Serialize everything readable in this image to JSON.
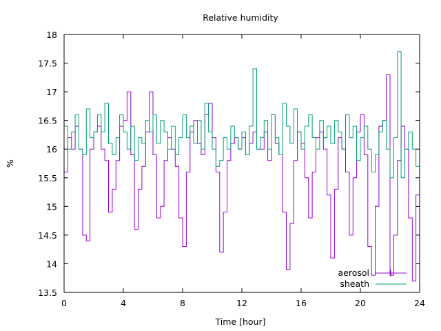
{
  "chart_data": {
    "type": "line",
    "title": "Relative humidity",
    "xlabel": "Time [hour]",
    "ylabel": "%",
    "xlim": [
      0,
      24
    ],
    "ylim": [
      13.5,
      18
    ],
    "xticks": [
      "0",
      "4",
      "8",
      "12",
      "16",
      "20",
      "24"
    ],
    "yticks": [
      "13.5",
      "14",
      "14.5",
      "15",
      "15.5",
      "16",
      "16.5",
      "17",
      "17.5",
      "18"
    ],
    "grid": false,
    "legend_position": "bottom-right",
    "x_start": 0,
    "x_step": 0.25,
    "series": [
      {
        "name": "aerosol",
        "color": "#9400d3",
        "values": [
          15.6,
          16.2,
          16.0,
          16.4,
          16.0,
          14.5,
          14.4,
          16.0,
          16.3,
          16.4,
          16.0,
          15.8,
          14.9,
          15.3,
          15.8,
          16.4,
          16.5,
          17.0,
          15.9,
          14.6,
          15.3,
          15.7,
          16.3,
          17.0,
          15.9,
          14.8,
          15.0,
          15.8,
          16.2,
          16.0,
          15.7,
          14.8,
          14.3,
          15.6,
          16.3,
          16.5,
          16.1,
          15.9,
          16.6,
          16.8,
          16.2,
          15.6,
          14.2,
          14.9,
          15.8,
          16.1,
          16.2,
          16.0,
          16.2,
          15.9,
          16.1,
          16.3,
          16.0,
          16.0,
          16.3,
          15.8,
          16.6,
          16.1,
          15.9,
          14.9,
          13.9,
          14.7,
          15.8,
          16.3,
          16.1,
          15.5,
          14.8,
          15.6,
          16.2,
          16.3,
          16.0,
          15.2,
          14.1,
          15.3,
          16.2,
          16.0,
          15.6,
          14.5,
          15.5,
          16.3,
          16.6,
          15.9,
          14.3,
          13.8,
          15.0,
          16.4,
          16.5,
          17.3,
          13.8,
          14.5,
          15.8,
          16.4,
          16.0,
          14.8,
          13.7,
          15.2
        ]
      },
      {
        "name": "sheath",
        "color": "#009e73",
        "values": [
          16.4,
          16.0,
          16.3,
          16.6,
          16.0,
          15.9,
          16.7,
          16.2,
          16.3,
          16.6,
          16.3,
          16.8,
          16.1,
          15.9,
          16.2,
          16.6,
          16.3,
          16.0,
          16.4,
          15.8,
          16.2,
          16.1,
          16.5,
          16.3,
          16.6,
          16.1,
          16.5,
          16.3,
          16.0,
          16.4,
          15.9,
          16.2,
          16.6,
          16.2,
          16.4,
          16.1,
          16.5,
          16.0,
          16.8,
          16.3,
          16.0,
          15.7,
          15.8,
          16.2,
          16.0,
          16.4,
          16.2,
          16.0,
          16.3,
          15.9,
          16.4,
          17.4,
          16.0,
          16.2,
          16.5,
          16.0,
          16.6,
          16.2,
          15.9,
          16.8,
          16.4,
          16.1,
          16.7,
          16.3,
          16.0,
          16.4,
          16.6,
          16.2,
          16.0,
          16.5,
          16.2,
          16.4,
          16.1,
          16.5,
          16.3,
          16.0,
          16.6,
          16.2,
          16.4,
          15.8,
          16.2,
          16.4,
          16.0,
          15.6,
          15.9,
          16.3,
          16.5,
          16.0,
          15.5,
          16.2,
          17.7,
          15.5,
          16.0,
          16.3,
          16.0,
          15.7
        ]
      }
    ]
  }
}
